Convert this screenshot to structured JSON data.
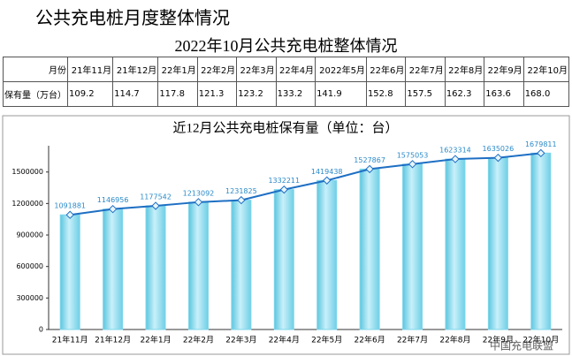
{
  "header": {
    "title": "公共充电桩月度整体情况"
  },
  "table": {
    "title": "2022年10月公共充电桩整体情况",
    "rows": [
      [
        "月份",
        "21年11月",
        "21年12月",
        "22年1月",
        "22年2月",
        "22年3月",
        "22年4月",
        "2022年5月",
        "22年6月",
        "22年7月",
        "22年8月",
        "22年9月",
        "22年10月"
      ],
      [
        "保有量（万台）",
        "109.2",
        "114.7",
        "117.8",
        "121.3",
        "123.2",
        "133.2",
        "141.9",
        "152.8",
        "157.5",
        "162.3",
        "163.6",
        "168.0"
      ]
    ]
  },
  "chart_data": {
    "type": "bar_line",
    "title": "近12月公共充电桩保有量（单位：台）",
    "categories": [
      "21年11月",
      "21年12月",
      "22年1月",
      "22年2月",
      "22年3月",
      "22年4月",
      "22年5月",
      "22年6月",
      "22年7月",
      "22年8月",
      "22年9月",
      "22年10月"
    ],
    "values": [
      1091881,
      1146956,
      1177542,
      1213092,
      1231825,
      1332211,
      1419438,
      1527867,
      1575053,
      1623314,
      1635026,
      1679811
    ],
    "color": "#7fd6ea",
    "line_color": "#1e6fc4",
    "label_color": "#2a8ac9",
    "ylim": [
      0,
      1750000
    ],
    "yticks": [
      0,
      300000,
      600000,
      900000,
      1200000,
      1500000
    ]
  },
  "watermark": "中国充电联盟"
}
